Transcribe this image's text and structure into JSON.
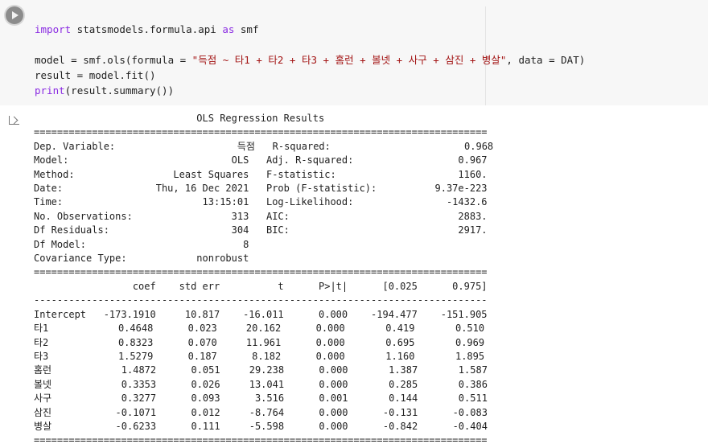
{
  "cell": {
    "run_button": "run-cell",
    "code_lines": [
      {
        "kw": "import",
        "text": " statsmodels.formula.api ",
        "kw2": "as",
        "text2": " smf"
      },
      {
        "line": ""
      },
      {
        "pre": "model = smf.ols(formula = ",
        "str": "\"득점 ~ 타1 + 타2 + 타3 + 홈런 + 볼넷 + 사구 + 삼진 + 병살\"",
        "post": ", data = DAT)"
      },
      {
        "line": "result = model.fit()"
      },
      {
        "fn": "print",
        "text": "(result.summary())"
      }
    ]
  },
  "output": {
    "icon": "output-arrow-icon",
    "lines": [
      "                            OLS Regression Results                            ",
      "==============================================================================",
      "Dep. Variable:                     득점   R-squared:                       0.968",
      "Model:                            OLS   Adj. R-squared:                  0.967",
      "Method:                 Least Squares   F-statistic:                     1160.",
      "Date:                Thu, 16 Dec 2021   Prob (F-statistic):          9.37e-223",
      "Time:                        13:15:01   Log-Likelihood:                -1432.6",
      "No. Observations:                 313   AIC:                             2883.",
      "Df Residuals:                     304   BIC:                             2917.",
      "Df Model:                           8                                         ",
      "Covariance Type:            nonrobust                                         ",
      "==============================================================================",
      "                 coef    std err          t      P>|t|      [0.025      0.975]",
      "------------------------------------------------------------------------------",
      "Intercept   -173.1910     10.817    -16.011      0.000    -194.477    -151.905",
      "타1            0.4648      0.023     20.162      0.000       0.419       0.510",
      "타2            0.8323      0.070     11.961      0.000       0.695       0.969",
      "타3            1.5279      0.187      8.182      0.000       1.160       1.895",
      "홈런            1.4872      0.051     29.238      0.000       1.387       1.587",
      "볼넷            0.3353      0.026     13.041      0.000       0.285       0.386",
      "사구            0.3277      0.093      3.516      0.001       0.144       0.511",
      "삼진           -0.1071      0.012     -8.764      0.000      -0.131      -0.083",
      "병살           -0.6233      0.111     -5.598      0.000      -0.842      -0.404",
      "=============================================================================="
    ]
  }
}
